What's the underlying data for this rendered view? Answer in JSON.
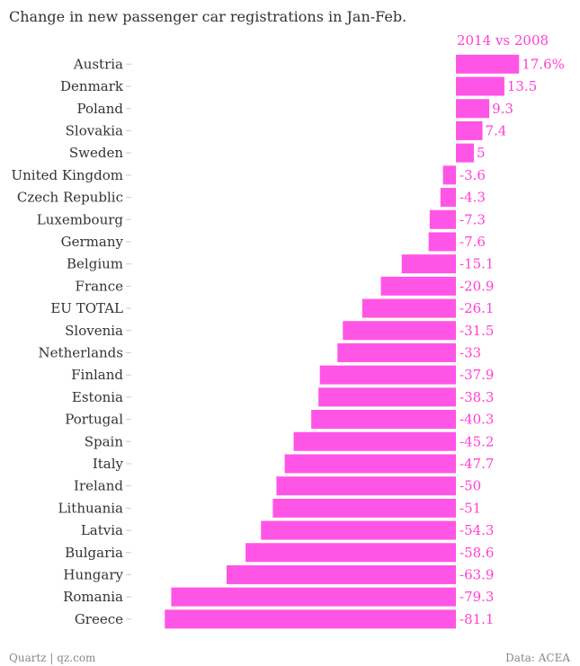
{
  "footer": {
    "source_left": "Quartz | qz.com",
    "source_right": "Data: ACEA"
  },
  "colors": {
    "bar": "#ff55e6",
    "label": "#ff3fd6",
    "text": "#333333"
  },
  "chart_data": {
    "type": "bar",
    "orientation": "horizontal",
    "title": "Change in new passenger car registrations in Jan-Feb.",
    "series_name": "2014 vs 2008",
    "categories": [
      "Austria",
      "Denmark",
      "Poland",
      "Slovakia",
      "Sweden",
      "United Kingdom",
      "Czech Republic",
      "Luxembourg",
      "Germany",
      "Belgium",
      "France",
      "EU TOTAL",
      "Slovenia",
      "Netherlands",
      "Finland",
      "Estonia",
      "Portugal",
      "Spain",
      "Italy",
      "Ireland",
      "Lithuania",
      "Latvia",
      "Bulgaria",
      "Hungary",
      "Romania",
      "Greece"
    ],
    "values": [
      17.6,
      13.5,
      9.3,
      7.4,
      5,
      -3.6,
      -4.3,
      -7.3,
      -7.6,
      -15.1,
      -20.9,
      -26.1,
      -31.5,
      -33,
      -37.9,
      -38.3,
      -40.3,
      -45.2,
      -47.7,
      -50,
      -51,
      -54.3,
      -58.6,
      -63.9,
      -79.3,
      -81.1
    ],
    "value_labels": [
      "17.6%",
      "13.5",
      "9.3",
      "7.4",
      "5",
      "-3.6",
      "-4.3",
      "-7.3",
      "-7.6",
      "-15.1",
      "-20.9",
      "-26.1",
      "-31.5",
      "-33",
      "-37.9",
      "-38.3",
      "-40.3",
      "-45.2",
      "-47.7",
      "-50",
      "-51",
      "-54.3",
      "-58.6",
      "-63.9",
      "-79.3",
      "-81.1"
    ],
    "xlim": [
      -81.1,
      17.6
    ],
    "grid": false,
    "legend": "none"
  }
}
